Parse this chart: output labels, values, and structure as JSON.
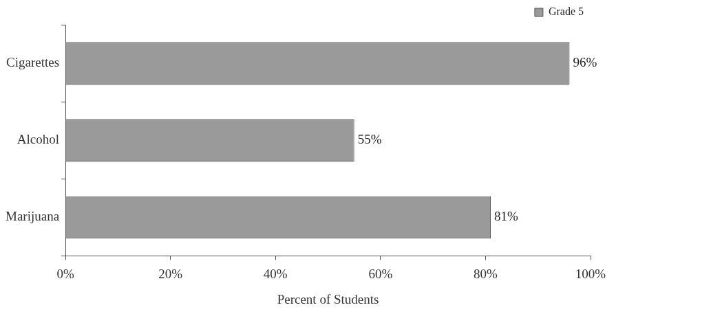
{
  "chart_data": {
    "type": "bar",
    "orientation": "horizontal",
    "xlabel": "Percent of Students",
    "categories": [
      "Cigarettes",
      "Alcohol",
      "Marijuana"
    ],
    "series": [
      {
        "name": "Grade 5",
        "color": "#9a9a9a",
        "values": [
          96,
          55,
          81
        ],
        "value_labels": [
          "96%",
          "55%",
          "81%"
        ]
      }
    ],
    "xlim": [
      0,
      100
    ],
    "xticks": [
      {
        "value": 0,
        "label": "0%"
      },
      {
        "value": 20,
        "label": "20%"
      },
      {
        "value": 40,
        "label": "40%"
      },
      {
        "value": 60,
        "label": "60%"
      },
      {
        "value": 80,
        "label": "80%"
      },
      {
        "value": 100,
        "label": "100%"
      }
    ],
    "grid": false,
    "legend": "top right"
  }
}
